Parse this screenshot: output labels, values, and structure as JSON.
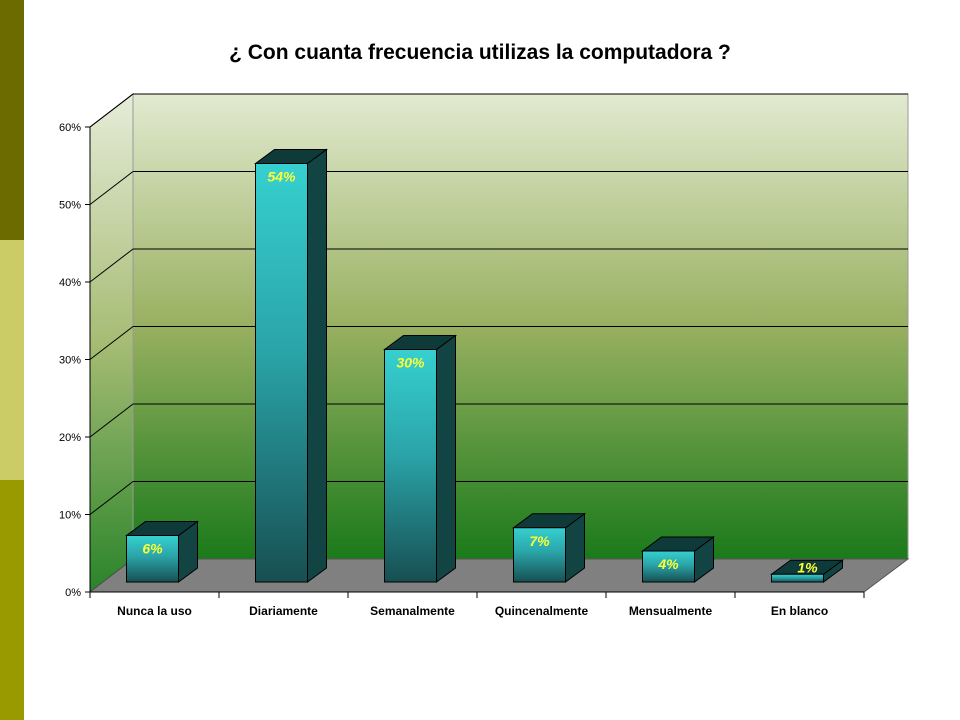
{
  "chart_data": {
    "type": "bar",
    "title": "¿ Con cuanta frecuencia utilizas la computadora ?",
    "categories": [
      "Nunca la uso",
      "Diariamente",
      "Semanalmente",
      "Quincenalmente",
      "Mensualmente",
      "En blanco"
    ],
    "values": [
      6,
      54,
      30,
      7,
      4,
      1
    ],
    "data_labels": [
      "6%",
      "54%",
      "30%",
      "7%",
      "4%",
      "1%"
    ],
    "y_ticks": [
      "0%",
      "10%",
      "20%",
      "30%",
      "40%",
      "50%",
      "60%"
    ],
    "ylim": [
      0,
      60
    ],
    "grid": true,
    "legend": "none",
    "colors": {
      "bar_front_top": "#33cccc",
      "bar_front_bottom": "#1a5a5a",
      "bar_side": "#124444",
      "bar_top": "#0f3a3a",
      "wall_top": "#e2ead0",
      "wall_bottom": "#1a7a1a",
      "floor": "#808080",
      "label": "#ffff33"
    }
  }
}
